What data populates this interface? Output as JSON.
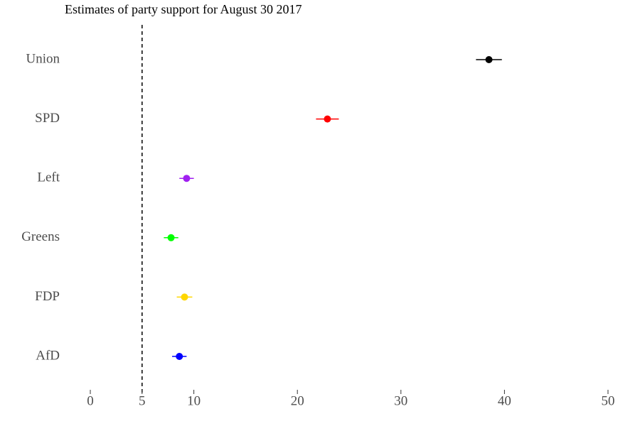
{
  "chart_data": {
    "type": "dot",
    "title": "Estimates of party support for August 30 2017",
    "categories": [
      "Union",
      "SPD",
      "Left",
      "Greens",
      "FDP",
      "AfD"
    ],
    "values": [
      38.5,
      22.9,
      9.3,
      7.8,
      9.1,
      8.6
    ],
    "errors": [
      1.25,
      1.1,
      0.7,
      0.7,
      0.75,
      0.7
    ],
    "colors": [
      "#000000",
      "#ff0000",
      "#a020f0",
      "#00ff00",
      "#ffd700",
      "#0000ff"
    ],
    "reference_line": 5,
    "xlim": [
      0,
      50
    ],
    "xticks": [
      0,
      5,
      10,
      20,
      30,
      40,
      50
    ]
  }
}
